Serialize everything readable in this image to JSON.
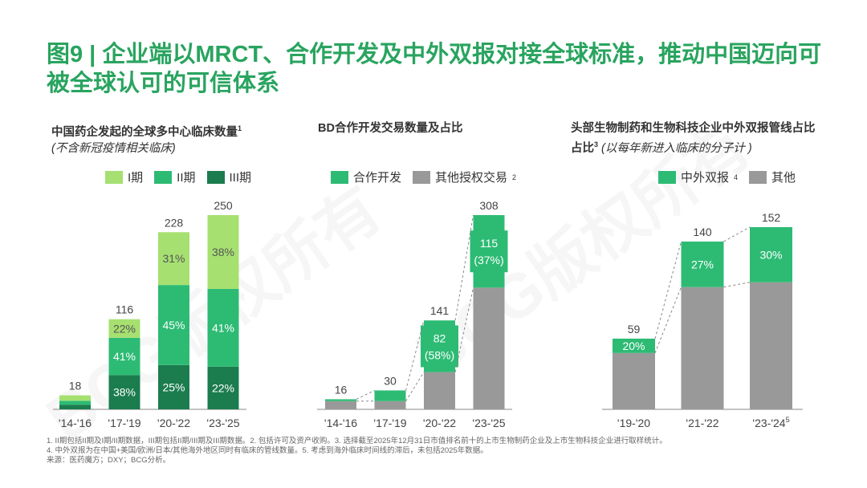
{
  "title": "图9 | 企业端以MRCT、合作开发及中外双报对接全球标准，推动中国迈向可被全球认可的可信体系",
  "watermark": "BCG版权所有",
  "colors": {
    "title": "#29a45f",
    "phase1": "#a6e071",
    "phase2": "#2dbb74",
    "phase3": "#1b7c4e",
    "green": "#2dbb74",
    "gray": "#999999"
  },
  "chart_data": [
    {
      "type": "bar",
      "stacked": true,
      "title": "中国药企发起的全球多中心临床数量",
      "title_sup": "1",
      "subtitle": "(不含新冠疫情相关临床)",
      "categories": [
        "'14-'16",
        "'17-'19",
        "'20-'22",
        "'23-'25"
      ],
      "totals": [
        "18",
        "116",
        "228",
        "250"
      ],
      "ylim": [
        0,
        250
      ],
      "series": [
        {
          "name": "III期",
          "color": "#1b7c4e",
          "values": [
            6,
            44,
            57,
            55
          ],
          "labels": [
            "",
            "38%",
            "25%",
            "22%"
          ]
        },
        {
          "name": "II期",
          "color": "#2dbb74",
          "values": [
            5,
            48,
            103,
            100
          ],
          "labels": [
            "",
            "41%",
            "45%",
            "41%"
          ]
        },
        {
          "name": "I期",
          "color": "#a6e071",
          "values": [
            7,
            24,
            68,
            95
          ],
          "labels": [
            "",
            "22%",
            "31%",
            "38%"
          ]
        }
      ]
    },
    {
      "type": "bar",
      "stacked": true,
      "title": "BD合作开发交易数量及占比",
      "categories": [
        "'14-'16",
        "'17-'19",
        "'20-'22",
        "'23-'25"
      ],
      "totals": [
        "16",
        "30",
        "141",
        "308"
      ],
      "ylim": [
        0,
        308
      ],
      "series": [
        {
          "name": "其他授权交易",
          "sup": "2",
          "color": "#999999",
          "values": [
            13,
            13,
            59,
            193
          ],
          "labels": [
            "",
            "",
            "",
            ""
          ]
        },
        {
          "name": "合作开发",
          "color": "#2dbb74",
          "values": [
            3,
            17,
            82,
            115
          ],
          "labels": [
            "",
            "",
            "82",
            "115"
          ],
          "sublabels": [
            "",
            "",
            "(58%)",
            "(37%)"
          ]
        }
      ]
    },
    {
      "type": "bar",
      "stacked": true,
      "title": "头部生物制药和生物科技企业中外双报管线占比",
      "title_sup": "3",
      "subtitle": "(以每年新进入临床的分子计 )",
      "categories": [
        "'19-'20",
        "'21-'22",
        "'23-'24"
      ],
      "category_sup": [
        "",
        "",
        "5"
      ],
      "totals": [
        "59",
        "140",
        "152"
      ],
      "ylim": [
        0,
        152
      ],
      "series": [
        {
          "name": "其他",
          "color": "#999999",
          "values": [
            47,
            102,
            106
          ],
          "labels": [
            "",
            "",
            ""
          ]
        },
        {
          "name": "中外双报",
          "sup": "4",
          "color": "#2dbb74",
          "values": [
            12,
            38,
            46
          ],
          "labels": [
            "20%",
            "27%",
            "30%"
          ]
        }
      ]
    }
  ],
  "footnotes": [
    "1. II期包括II期及I期/II期数据，III期包括II期/III期及III期数据。2. 包括许可及资产收购。3. 选择截至2025年12月31日市值排名前十的上市生物制药企业及上市生物科技企业进行取样统计。",
    "4. 中外双报为在中国+美国/欧洲/日本/其他海外地区同时有临床的管线数量。5. 考虑到海外临床时间线的滞后，未包括2025年数据。",
    "来源：医药魔方；DXY；BCG分析。"
  ]
}
